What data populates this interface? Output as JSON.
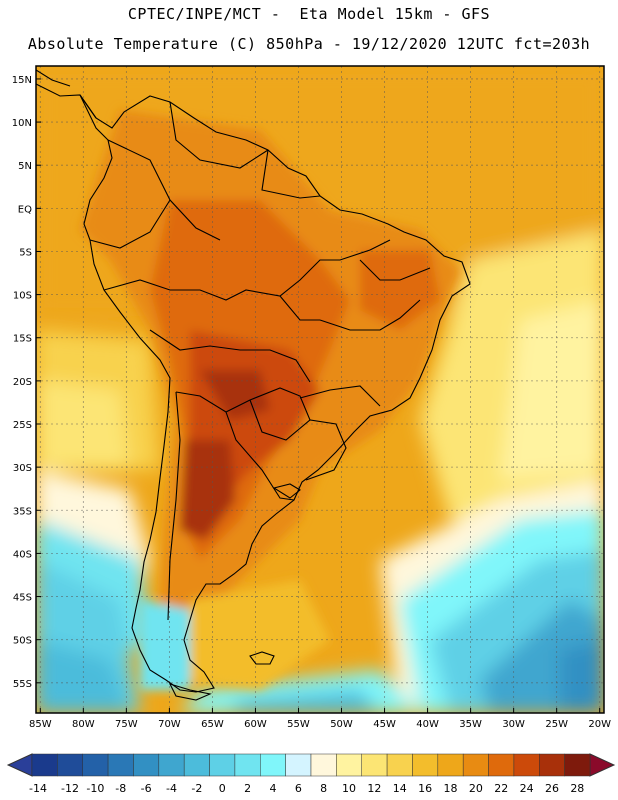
{
  "title_line1": "CPTEC/INPE/MCT -  Eta Model 15km - GFS",
  "title_line2": "Absolute Temperature (C) 850hPa - 19/12/2020 12UTC fct=203h",
  "lat_labels": [
    "15N",
    "10N",
    "5N",
    "EQ",
    "5S",
    "10S",
    "15S",
    "20S",
    "25S",
    "30S",
    "35S",
    "40S",
    "45S",
    "50S",
    "55S"
  ],
  "lat_values": [
    15,
    10,
    5,
    0,
    -5,
    -10,
    -15,
    -20,
    -25,
    -30,
    -35,
    -40,
    -45,
    -50,
    -55
  ],
  "lon_labels": [
    "85W",
    "80W",
    "75W",
    "70W",
    "65W",
    "60W",
    "55W",
    "50W",
    "45W",
    "40W",
    "35W",
    "30W",
    "25W",
    "20W"
  ],
  "lon_values": [
    -85,
    -80,
    -75,
    -70,
    -65,
    -60,
    -55,
    -50,
    -45,
    -40,
    -35,
    -30,
    -25,
    -20
  ],
  "map_extent": {
    "lon_min": -85.5,
    "lon_max": -19.5,
    "lat_min": -58.5,
    "lat_max": 16.5
  },
  "colorbar": {
    "labels": [
      "-14",
      "-12",
      "-10",
      "-8",
      "-6",
      "-4",
      "-2",
      "0",
      "2",
      "4",
      "6",
      "8",
      "10",
      "12",
      "14",
      "16",
      "18",
      "20",
      "22",
      "24",
      "26",
      "28"
    ],
    "colors": [
      "#1a3a8c",
      "#1f4c99",
      "#2361a8",
      "#2a78b6",
      "#3290c3",
      "#3fa6cf",
      "#4cbcdb",
      "#5ed0e6",
      "#70e4f0",
      "#80f6fa",
      "#d4f4ff",
      "#fff7dc",
      "#fff3a0",
      "#fce574",
      "#f8d24e",
      "#f3bd2c",
      "#eea71a",
      "#e88b12",
      "#df6a0c",
      "#cc4a0a",
      "#a8300a",
      "#7e1a0c"
    ],
    "min_color": "#2a3f99",
    "max_color": "#8a0a2a"
  }
}
